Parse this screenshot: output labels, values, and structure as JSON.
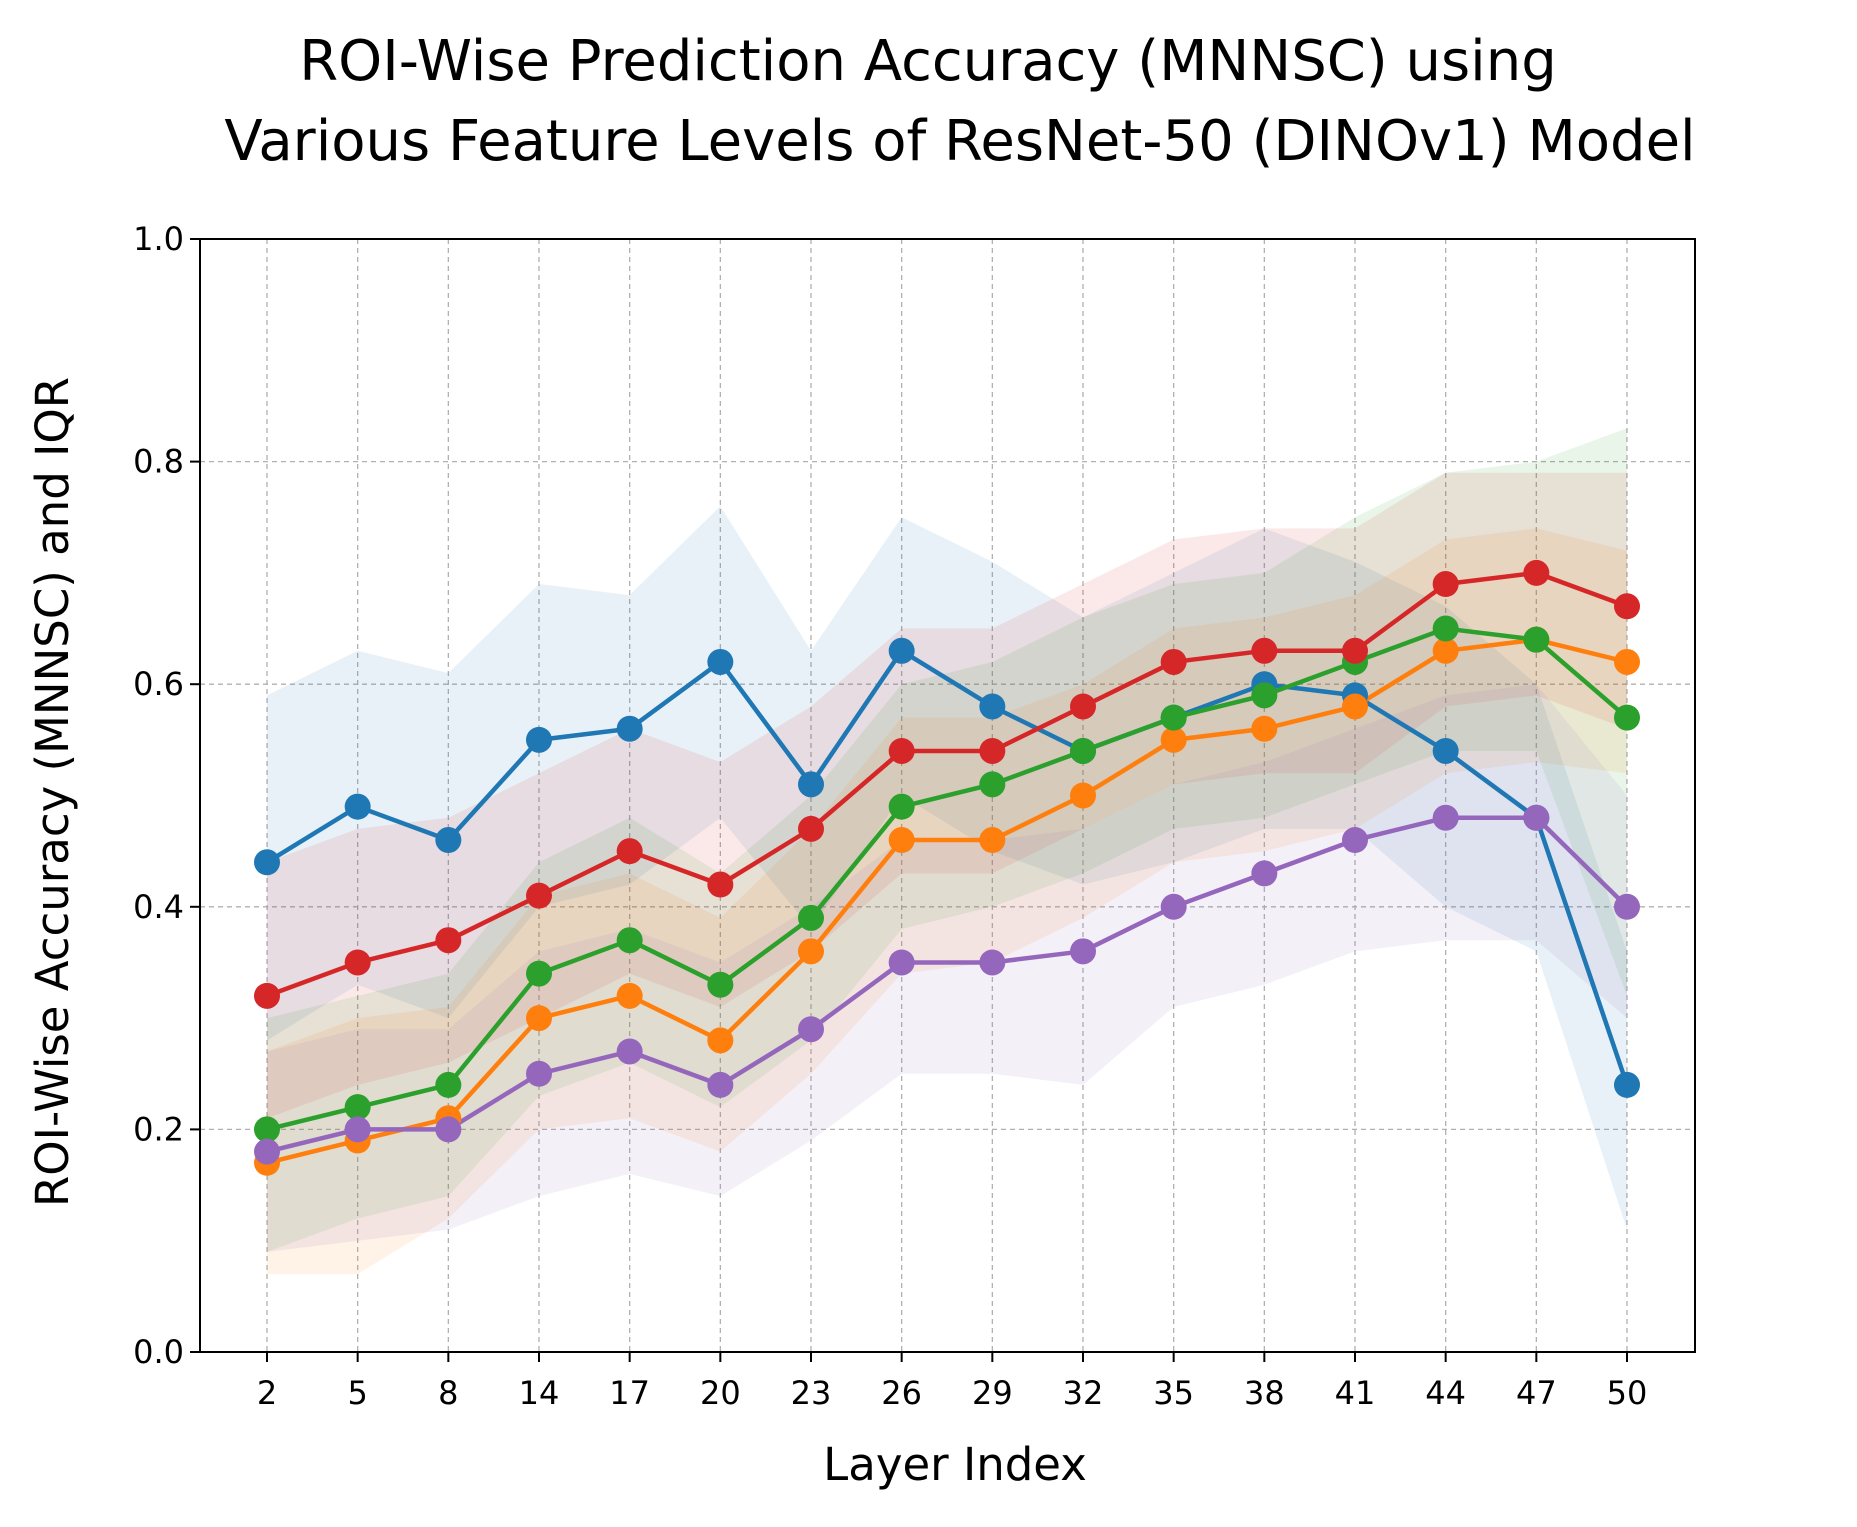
{
  "chart_data": {
    "type": "line",
    "title": [
      "ROI-Wise Prediction Accuracy (MNNSC) using",
      "Various Feature Levels of ResNet-50 (DINOv1) Model"
    ],
    "xlabel": "Layer Index",
    "ylabel": "ROI-Wise Accuracy (MNNSC) and IQR",
    "ylim": [
      0.0,
      1.0
    ],
    "yticks": [
      "0.0",
      "0.2",
      "0.4",
      "0.6",
      "0.8",
      "1.0"
    ],
    "categories": [
      "2",
      "5",
      "8",
      "14",
      "17",
      "20",
      "23",
      "26",
      "29",
      "32",
      "35",
      "38",
      "41",
      "44",
      "47",
      "50"
    ],
    "grid": true,
    "legend": "none",
    "series": [
      {
        "color": "#1f77b4",
        "values": [
          0.44,
          0.49,
          0.46,
          0.55,
          0.56,
          0.62,
          0.51,
          0.63,
          0.58,
          0.54,
          0.57,
          0.6,
          0.59,
          0.54,
          0.48,
          0.24
        ],
        "iqr_low": [
          0.28,
          0.33,
          0.3,
          0.4,
          0.42,
          0.48,
          0.38,
          0.5,
          0.45,
          0.42,
          0.44,
          0.47,
          0.47,
          0.4,
          0.36,
          0.11
        ],
        "iqr_high": [
          0.59,
          0.63,
          0.61,
          0.69,
          0.68,
          0.76,
          0.63,
          0.75,
          0.71,
          0.66,
          0.7,
          0.74,
          0.71,
          0.67,
          0.6,
          0.36
        ]
      },
      {
        "color": "#ff7f0e",
        "values": [
          0.17,
          0.19,
          0.21,
          0.3,
          0.32,
          0.28,
          0.36,
          0.46,
          0.46,
          0.5,
          0.55,
          0.56,
          0.58,
          0.63,
          0.64,
          0.62
        ],
        "iqr_low": [
          0.07,
          0.07,
          0.12,
          0.2,
          0.21,
          0.18,
          0.25,
          0.34,
          0.35,
          0.39,
          0.44,
          0.45,
          0.47,
          0.52,
          0.53,
          0.52
        ],
        "iqr_high": [
          0.27,
          0.3,
          0.31,
          0.41,
          0.43,
          0.39,
          0.47,
          0.57,
          0.57,
          0.6,
          0.65,
          0.66,
          0.68,
          0.73,
          0.74,
          0.72
        ]
      },
      {
        "color": "#2ca02c",
        "values": [
          0.2,
          0.22,
          0.24,
          0.34,
          0.37,
          0.33,
          0.39,
          0.49,
          0.51,
          0.54,
          0.57,
          0.59,
          0.62,
          0.65,
          0.64,
          0.57
        ],
        "iqr_low": [
          0.09,
          0.12,
          0.14,
          0.23,
          0.26,
          0.22,
          0.28,
          0.38,
          0.4,
          0.43,
          0.47,
          0.48,
          0.51,
          0.54,
          0.54,
          0.32
        ],
        "iqr_high": [
          0.3,
          0.32,
          0.34,
          0.44,
          0.48,
          0.43,
          0.5,
          0.6,
          0.62,
          0.66,
          0.69,
          0.7,
          0.75,
          0.79,
          0.8,
          0.83
        ]
      },
      {
        "color": "#d62728",
        "values": [
          0.32,
          0.35,
          0.37,
          0.41,
          0.45,
          0.42,
          0.47,
          0.54,
          0.54,
          0.58,
          0.62,
          0.63,
          0.63,
          0.69,
          0.7,
          0.67
        ],
        "iqr_low": [
          0.21,
          0.24,
          0.26,
          0.3,
          0.34,
          0.31,
          0.36,
          0.43,
          0.43,
          0.47,
          0.51,
          0.52,
          0.52,
          0.58,
          0.59,
          0.56
        ],
        "iqr_high": [
          0.44,
          0.47,
          0.48,
          0.52,
          0.56,
          0.53,
          0.58,
          0.65,
          0.65,
          0.69,
          0.73,
          0.74,
          0.74,
          0.79,
          0.79,
          0.79
        ]
      },
      {
        "color": "#9467bd",
        "values": [
          0.18,
          0.2,
          0.2,
          0.25,
          0.27,
          0.24,
          0.29,
          0.35,
          0.35,
          0.36,
          0.4,
          0.43,
          0.46,
          0.48,
          0.48,
          0.4
        ],
        "iqr_low": [
          0.09,
          0.1,
          0.11,
          0.14,
          0.16,
          0.14,
          0.19,
          0.25,
          0.25,
          0.24,
          0.31,
          0.33,
          0.36,
          0.37,
          0.37,
          0.3
        ],
        "iqr_high": [
          0.27,
          0.29,
          0.29,
          0.36,
          0.38,
          0.35,
          0.4,
          0.46,
          0.46,
          0.47,
          0.51,
          0.53,
          0.56,
          0.59,
          0.6,
          0.5
        ]
      }
    ]
  }
}
